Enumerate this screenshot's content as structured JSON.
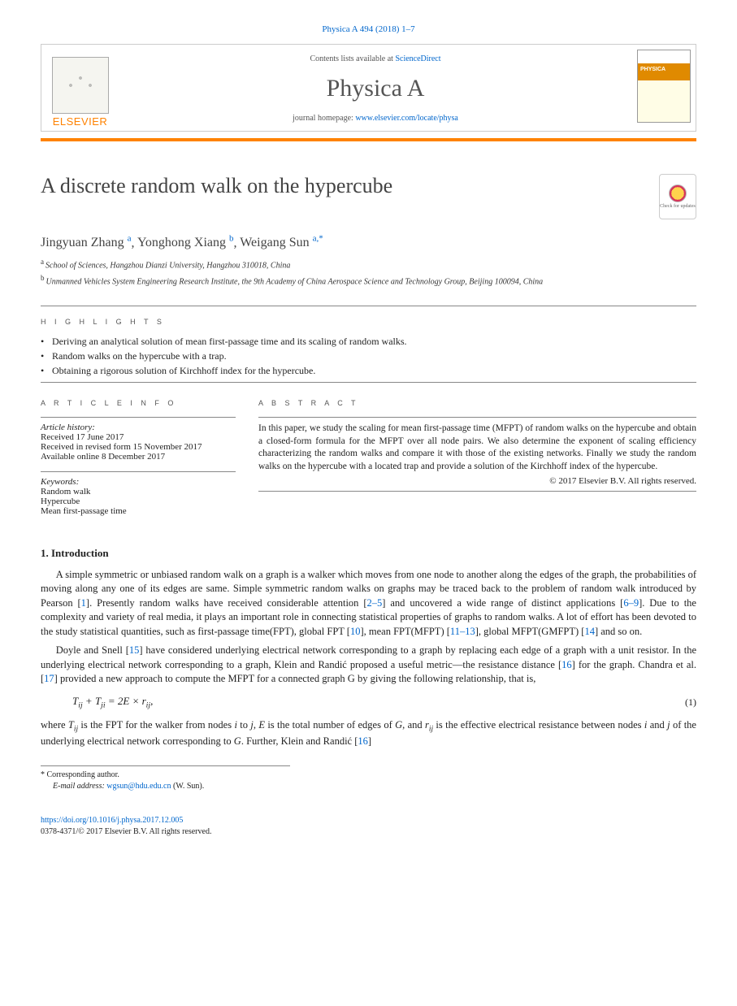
{
  "citation": "Physica A 494 (2018) 1–7",
  "header": {
    "contents_prefix": "Contents lists available at ",
    "contents_link": "ScienceDirect",
    "journal_name": "Physica A",
    "homepage_prefix": "journal homepage: ",
    "homepage_url": "www.elsevier.com/locate/physa",
    "publisher_word": "ELSEVIER"
  },
  "updates_badge": "Check for updates",
  "title": "A discrete random walk on the hypercube",
  "authors": [
    {
      "name": "Jingyuan Zhang",
      "sup": "a"
    },
    {
      "name": "Yonghong Xiang",
      "sup": "b"
    },
    {
      "name": "Weigang Sun",
      "sup": "a,*"
    }
  ],
  "affiliations": [
    {
      "sup": "a",
      "text": "School of Sciences, Hangzhou Dianzi University, Hangzhou 310018, China"
    },
    {
      "sup": "b",
      "text": "Unmanned Vehicles System Engineering Research Institute, the 9th Academy of China Aerospace Science and Technology Group, Beijing 100094, China"
    }
  ],
  "headings": {
    "highlights": "H I G H L I G H T S",
    "article_info": "A R T I C L E   I N F O",
    "abstract": "A B S T R A C T",
    "intro": "1. Introduction"
  },
  "highlights": [
    "Deriving an analytical solution of mean first-passage time and its scaling of random walks.",
    "Random walks on the hypercube with a trap.",
    "Obtaining a rigorous solution of Kirchhoff index for the hypercube."
  ],
  "article_info": {
    "history_label": "Article history:",
    "received": "Received 17 June 2017",
    "revised": "Received in revised form 15 November 2017",
    "online": "Available online 8 December 2017",
    "keywords_label": "Keywords:",
    "keywords": [
      "Random walk",
      "Hypercube",
      "Mean first-passage time"
    ]
  },
  "abstract": "In this paper, we study the scaling for mean first-passage time (MFPT) of random walks on the hypercube and obtain a closed-form formula for the MFPT over all node pairs. We also determine the exponent of scaling efficiency characterizing the random walks and compare it with those of the existing networks. Finally we study the random walks on the hypercube with a located trap and provide a solution of the Kirchhoff index of the hypercube.",
  "copyright": "© 2017 Elsevier B.V. All rights reserved.",
  "intro": {
    "p1a": "A simple symmetric or unbiased random walk on a graph is a walker which moves from one node to another along the edges of the graph, the probabilities of moving along any one of its edges are same. Simple symmetric random walks on graphs may be traced back to the problem of random walk introduced by Pearson [",
    "r1": "1",
    "p1b": "]. Presently random walks have received considerable attention [",
    "r2": "2–5",
    "p1c": "] and uncovered a wide range of distinct applications [",
    "r3": "6–9",
    "p1d": "]. Due to the complexity and variety of real media, it plays an important role in connecting statistical properties of graphs to random walks. A lot of effort has been devoted to the study statistical quantities, such as first-passage time(FPT), global FPT [",
    "r4": "10",
    "p1e": "], mean FPT(MFPT) [",
    "r5": "11–13",
    "p1f": "], global MFPT(GMFPT) [",
    "r6": "14",
    "p1g": "] and so on.",
    "p2a": "Doyle and Snell [",
    "r7": "15",
    "p2b": "] have considered underlying electrical network corresponding to a graph by replacing each edge of a graph with a unit resistor. In the underlying electrical network corresponding to a graph, Klein and Randić proposed a useful metric—the resistance distance [",
    "r8": "16",
    "p2c": "] for the graph. Chandra et al. [",
    "r9": "17",
    "p2d": "] provided a new approach to compute the MFPT for a connected graph G by giving the following relationship, that is,",
    "eqn": "Tᵢⱼ + Tⱼᵢ = 2E × rᵢⱼ,",
    "eqn_num": "(1)",
    "p3a": "where Tᵢⱼ is the FPT for the walker from nodes i to j, E is the total number of edges of G, and rᵢⱼ is the effective electrical resistance between nodes i and j of the underlying electrical network corresponding to G. Further, Klein and Randić [",
    "r10": "16",
    "p3b": "]"
  },
  "footnotes": {
    "corr_label": "Corresponding author.",
    "email_label": "E-mail address:",
    "email": "wgsun@hdu.edu.cn",
    "email_who": " (W. Sun)."
  },
  "footer": {
    "doi": "https://doi.org/10.1016/j.physa.2017.12.005",
    "issn_line": "0378-4371/© 2017 Elsevier B.V. All rights reserved."
  }
}
